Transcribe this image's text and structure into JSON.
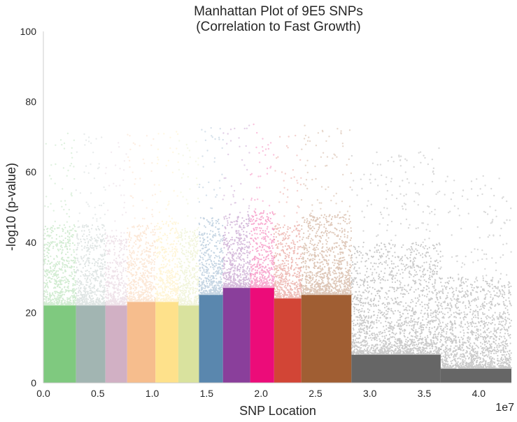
{
  "chart_data": {
    "type": "scatter",
    "title": [
      "Manhattan Plot of 9E5 SNPs",
      "(Correlation to Fast Growth)"
    ],
    "xlabel": "SNP Location",
    "ylabel": "-log10 (p-value)",
    "x_exponent_label": "1e7",
    "xlim": [
      0,
      4.3
    ],
    "ylim": [
      0,
      100
    ],
    "x_ticks": [
      {
        "value": 0.0,
        "label": "0.0"
      },
      {
        "value": 0.5,
        "label": "0.5"
      },
      {
        "value": 1.0,
        "label": "1.0"
      },
      {
        "value": 1.5,
        "label": "1.5"
      },
      {
        "value": 2.0,
        "label": "2.0"
      },
      {
        "value": 2.5,
        "label": "2.5"
      },
      {
        "value": 3.0,
        "label": "3.0"
      },
      {
        "value": 3.5,
        "label": "3.5"
      },
      {
        "value": 4.0,
        "label": "4.0"
      }
    ],
    "y_ticks": [
      {
        "value": 0,
        "label": "0"
      },
      {
        "value": 20,
        "label": "20"
      },
      {
        "value": 40,
        "label": "40"
      },
      {
        "value": 60,
        "label": "60"
      },
      {
        "value": 80,
        "label": "80"
      },
      {
        "value": 100,
        "label": "100"
      }
    ],
    "grid": false,
    "segments": [
      {
        "start": 0.0,
        "end": 0.3,
        "color": "#7fc97f",
        "solid_top": 22,
        "cloud_top": 45
      },
      {
        "start": 0.3,
        "end": 0.57,
        "color": "#a2b5b2",
        "solid_top": 22,
        "cloud_top": 45
      },
      {
        "start": 0.57,
        "end": 0.77,
        "color": "#d1b0c4",
        "solid_top": 22,
        "cloud_top": 42
      },
      {
        "start": 0.77,
        "end": 1.03,
        "color": "#f6bd8d",
        "solid_top": 23,
        "cloud_top": 45
      },
      {
        "start": 1.03,
        "end": 1.24,
        "color": "#fee18b",
        "solid_top": 23,
        "cloud_top": 46
      },
      {
        "start": 1.24,
        "end": 1.43,
        "color": "#d9e29e",
        "solid_top": 22,
        "cloud_top": 44
      },
      {
        "start": 1.43,
        "end": 1.65,
        "color": "#5a87ae",
        "solid_top": 25,
        "cloud_top": 47
      },
      {
        "start": 1.65,
        "end": 1.9,
        "color": "#8a3f9b",
        "solid_top": 27,
        "cloud_top": 48
      },
      {
        "start": 1.9,
        "end": 2.12,
        "color": "#ec0c79",
        "solid_top": 27,
        "cloud_top": 49
      },
      {
        "start": 2.12,
        "end": 2.37,
        "color": "#d24536",
        "solid_top": 24,
        "cloud_top": 45
      },
      {
        "start": 2.37,
        "end": 2.83,
        "color": "#a05e33",
        "solid_top": 25,
        "cloud_top": 48
      },
      {
        "start": 2.83,
        "end": 3.65,
        "color": "#666666",
        "solid_top": 8,
        "cloud_top": 40
      },
      {
        "start": 3.65,
        "end": 4.3,
        "color": "#666666",
        "solid_top": 4,
        "cloud_top": 30
      }
    ]
  }
}
